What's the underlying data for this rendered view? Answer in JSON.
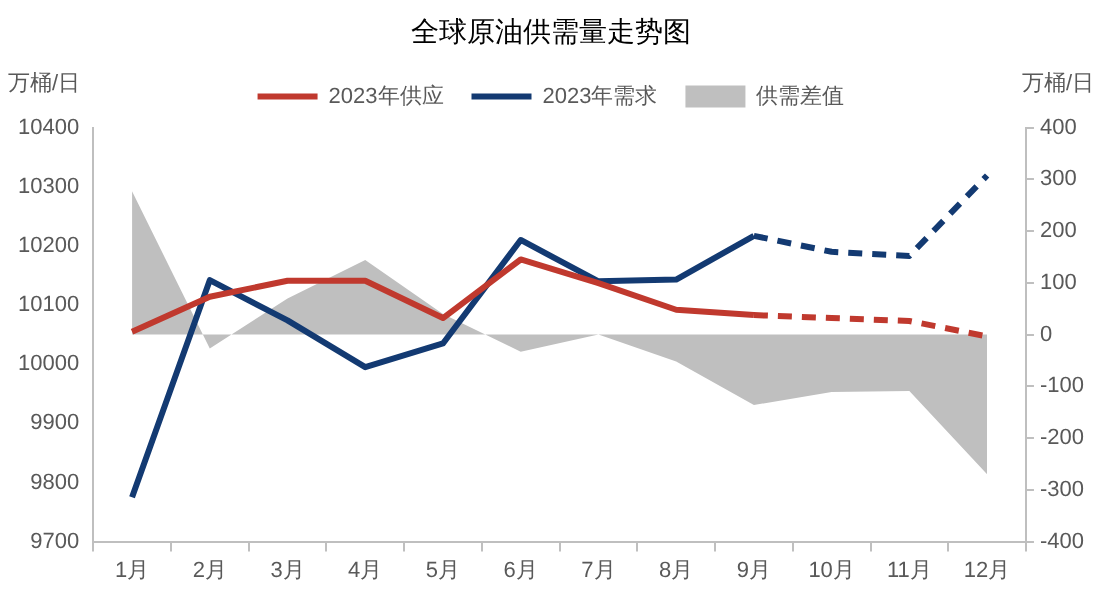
{
  "chart_data": {
    "type": "line",
    "title": "全球原油供需量走势图",
    "ylabel": "万桶/日",
    "y2label": "万桶/日",
    "categories": [
      "1月",
      "2月",
      "3月",
      "4月",
      "5月",
      "6月",
      "7月",
      "8月",
      "9月",
      "10月",
      "11月",
      "12月"
    ],
    "series": [
      {
        "name": "供需差值",
        "type": "area",
        "axis": "y2",
        "color": "#bfbfbf",
        "values": [
          277,
          -27,
          70,
          144,
          40,
          -33,
          0,
          -52,
          -136,
          -111,
          -109,
          -270
        ]
      },
      {
        "name": "2023年供应",
        "color": "#c0392e",
        "line_style": "solid",
        "values": [
          10055,
          10114,
          10141,
          10141,
          10078,
          10177,
          10137,
          10092,
          10083,
          null,
          null,
          null
        ]
      },
      {
        "name": "2023年需求",
        "color": "#133a72",
        "line_style": "solid",
        "values": [
          9775,
          10142,
          10074,
          9995,
          10035,
          10210,
          10140,
          10143,
          10217,
          null,
          null,
          null
        ]
      },
      {
        "color": "#c0392e",
        "line_style": "dashed",
        "values": [
          null,
          null,
          null,
          null,
          null,
          null,
          null,
          null,
          10083,
          10078,
          10073,
          10047
        ]
      },
      {
        "color": "#133a72",
        "line_style": "dashed",
        "values": [
          null,
          null,
          null,
          null,
          null,
          null,
          null,
          null,
          10217,
          10190,
          10183,
          10319
        ]
      }
    ],
    "ylim": [
      9700,
      10400
    ],
    "yticks": [
      9700,
      9800,
      9900,
      10000,
      10100,
      10200,
      10300,
      10400
    ],
    "y2lim": [
      -400,
      400
    ],
    "y2ticks": [
      -400,
      -300,
      -200,
      -100,
      0,
      100,
      200,
      300,
      400
    ],
    "grid": false,
    "legend": "top",
    "marker": "none"
  }
}
